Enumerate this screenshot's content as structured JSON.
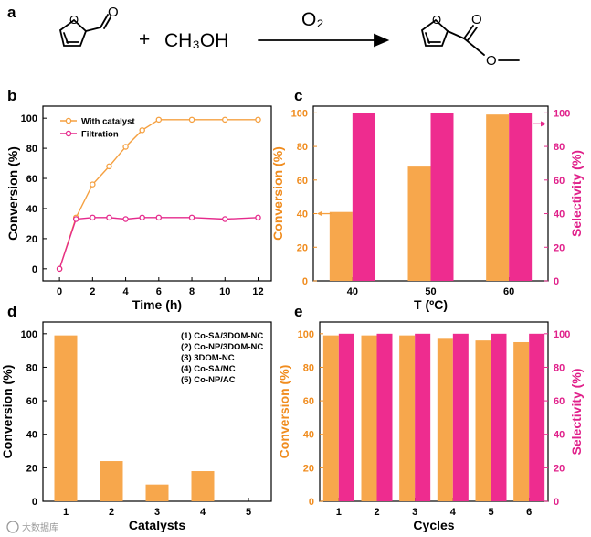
{
  "panels": {
    "a": "a",
    "b": "b",
    "c": "c",
    "d": "d",
    "e": "e"
  },
  "reaction": {
    "plus": "+",
    "methanol": "CH₃OH",
    "oxidant": "O₂"
  },
  "watermark": "大数据库",
  "colors": {
    "orange": "#f5a040",
    "orange_bar": "#f7a74c",
    "pink": "#e52a8c",
    "pink_bar": "#ee2c8f",
    "orange_text": "#f08c1e",
    "pink_text": "#e0208a"
  },
  "chart_data": [
    {
      "id": "b",
      "type": "line",
      "xlabel": "Time (h)",
      "ylabel": "Conversion (%)",
      "xlim": [
        -1,
        12.8
      ],
      "ylim": [
        -8,
        108
      ],
      "xticks": [
        0,
        2,
        4,
        6,
        8,
        10,
        12
      ],
      "yticks": [
        0,
        20,
        40,
        60,
        80,
        100
      ],
      "legend": "top-left",
      "series": [
        {
          "name": "With catalyst",
          "x": [
            0,
            1,
            2,
            3,
            4,
            5,
            6,
            8,
            10,
            12
          ],
          "y": [
            0,
            34,
            56,
            68,
            81,
            92,
            99,
            99,
            99,
            99
          ]
        },
        {
          "name": "Filtration",
          "x": [
            0,
            1,
            2,
            3,
            4,
            5,
            6,
            8,
            10,
            12
          ],
          "y": [
            0,
            33,
            34,
            34,
            33,
            34,
            34,
            34,
            33,
            34
          ]
        }
      ]
    },
    {
      "id": "c",
      "type": "bar",
      "xlabel": "T (ºC)",
      "ylabel": "Conversion (%)",
      "y2label": "Selectivity (%)",
      "categories": [
        "40",
        "50",
        "60"
      ],
      "ylim": [
        0,
        104
      ],
      "yticks": [
        0,
        20,
        40,
        60,
        80,
        100
      ],
      "series": [
        {
          "name": "Conversion",
          "values": [
            41,
            68,
            99
          ]
        },
        {
          "name": "Selectivity",
          "values": [
            100,
            100,
            100
          ]
        }
      ]
    },
    {
      "id": "d",
      "type": "bar",
      "xlabel": "Catalysts",
      "ylabel": "Conversion (%)",
      "categories": [
        "1",
        "2",
        "3",
        "4",
        "5"
      ],
      "ylim": [
        0,
        107
      ],
      "yticks": [
        0,
        20,
        40,
        60,
        80,
        100
      ],
      "legend_entries": [
        "(1) Co-SA/3DOM-NC",
        "(2) Co-NP/3DOM-NC",
        "(3) 3DOM-NC",
        "(4) Co-SA/NC",
        "(5) Co-NP/AC"
      ],
      "values": [
        99,
        24,
        10,
        18,
        0
      ]
    },
    {
      "id": "e",
      "type": "bar",
      "xlabel": "Cycles",
      "ylabel": "Conversion (%)",
      "y2label": "Selectivity (%)",
      "categories": [
        "1",
        "2",
        "3",
        "4",
        "5",
        "6"
      ],
      "ylim": [
        0,
        107
      ],
      "yticks": [
        0,
        20,
        40,
        60,
        80,
        100
      ],
      "series": [
        {
          "name": "Conversion",
          "values": [
            99,
            99,
            99,
            97,
            96,
            95
          ]
        },
        {
          "name": "Selectivity",
          "values": [
            100,
            100,
            100,
            100,
            100,
            100
          ]
        }
      ]
    }
  ]
}
